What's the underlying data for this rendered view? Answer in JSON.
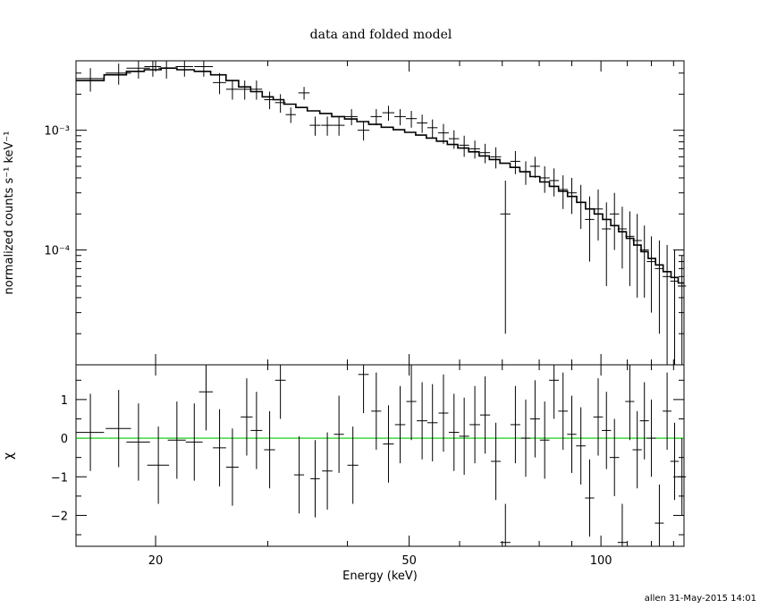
{
  "title": "data and folded model",
  "xlabel": "Energy (keV)",
  "ylabel_top": "normalized counts s⁻¹ keV⁻¹",
  "ylabel_bottom": "χ",
  "footer": "allen 31-May-2015 14:01",
  "colors": {
    "axes": "#000000",
    "data": "#000000",
    "zero_line": "#00c800"
  },
  "chart_data": [
    {
      "type": "scatter",
      "panel": "spectrum",
      "xscale": "log",
      "yscale": "log",
      "xlim": [
        15,
        135
      ],
      "ylim": [
        1.1e-05,
        0.0038
      ],
      "x_ticks": [
        "20",
        "50",
        "100"
      ],
      "y_ticks": [
        "10⁻³",
        "10⁻⁴"
      ],
      "data_points": [
        [
          15.8,
          0.0027,
          0.8,
          0.0006
        ],
        [
          17.5,
          0.003,
          0.8,
          0.0006
        ],
        [
          18.8,
          0.0033,
          0.8,
          0.0006
        ],
        [
          19.8,
          0.0034,
          0.6,
          0.0006
        ],
        [
          20.8,
          0.0033,
          0.6,
          0.0006
        ],
        [
          22.2,
          0.0034,
          0.7,
          0.0006
        ],
        [
          23.8,
          0.0034,
          0.8,
          0.0006
        ],
        [
          25.2,
          0.0025,
          0.6,
          0.0005
        ],
        [
          26.4,
          0.0022,
          0.6,
          0.0004
        ],
        [
          27.6,
          0.0022,
          0.6,
          0.0004
        ],
        [
          28.8,
          0.0022,
          0.6,
          0.0004
        ],
        [
          30.2,
          0.0018,
          0.6,
          0.0003
        ],
        [
          31.4,
          0.0017,
          0.6,
          0.0003
        ],
        [
          32.6,
          0.00135,
          0.6,
          0.0002
        ],
        [
          34.2,
          0.00205,
          0.7,
          0.00025
        ],
        [
          35.6,
          0.0011,
          0.7,
          0.0002
        ],
        [
          37.2,
          0.0011,
          0.8,
          0.0002
        ],
        [
          38.8,
          0.0011,
          0.8,
          0.0002
        ],
        [
          40.6,
          0.0013,
          0.9,
          0.0002
        ],
        [
          42.4,
          0.001,
          0.9,
          0.00018
        ],
        [
          44.4,
          0.0013,
          0.9,
          0.0002
        ],
        [
          46.4,
          0.0014,
          1.0,
          0.0002
        ],
        [
          48.4,
          0.0013,
          1.0,
          0.0002
        ],
        [
          50.4,
          0.00125,
          1.0,
          0.0002
        ],
        [
          52.4,
          0.00115,
          1.0,
          0.0002
        ],
        [
          54.4,
          0.00105,
          1.0,
          0.00018
        ],
        [
          56.6,
          0.00095,
          1.1,
          0.00018
        ],
        [
          58.8,
          0.00085,
          1.1,
          0.00015
        ],
        [
          61.0,
          0.00075,
          1.1,
          0.00015
        ],
        [
          63.4,
          0.0007,
          1.2,
          0.00012
        ],
        [
          65.8,
          0.00065,
          1.2,
          0.00012
        ],
        [
          68.4,
          0.0006,
          1.3,
          0.00012
        ],
        [
          70.8,
          0.0002,
          1.3,
          0.00018
        ],
        [
          73.4,
          0.00055,
          1.3,
          0.00012
        ],
        [
          76.2,
          0.00045,
          1.4,
          0.0001
        ],
        [
          78.8,
          0.0005,
          1.4,
          0.0001
        ],
        [
          81.6,
          0.0004,
          1.5,
          0.0001
        ],
        [
          84.4,
          0.00038,
          1.5,
          0.0001
        ],
        [
          87.2,
          0.00032,
          1.5,
          0.0001
        ],
        [
          90.0,
          0.0003,
          1.6,
          0.0001
        ],
        [
          93.0,
          0.00025,
          1.6,
          0.0001
        ],
        [
          96.0,
          0.00018,
          1.6,
          0.0001
        ],
        [
          99.0,
          0.00022,
          1.7,
          0.0001
        ],
        [
          102.0,
          0.00015,
          1.7,
          0.0001
        ],
        [
          105.0,
          0.0002,
          1.8,
          0.0001
        ],
        [
          108.0,
          0.00015,
          1.8,
          8e-05
        ],
        [
          111.0,
          0.00013,
          1.8,
          8e-05
        ],
        [
          114.0,
          0.00012,
          1.9,
          8e-05
        ],
        [
          117.0,
          0.0001,
          1.9,
          6e-05
        ],
        [
          120.0,
          8e-05,
          2.0,
          5e-05
        ],
        [
          123.5,
          7e-05,
          2.0,
          5e-05
        ],
        [
          127.0,
          6e-05,
          2.0,
          5e-05
        ],
        [
          130.5,
          5.5e-05,
          2.0,
          4.5e-05
        ],
        [
          134.0,
          5e-05,
          2.0,
          4e-05
        ]
      ],
      "model_steps": [
        [
          15.0,
          0.0026
        ],
        [
          16.6,
          0.0029
        ],
        [
          18.0,
          0.0031
        ],
        [
          19.2,
          0.0032
        ],
        [
          20.4,
          0.0033
        ],
        [
          21.6,
          0.0032
        ],
        [
          23.0,
          0.0031
        ],
        [
          24.4,
          0.0029
        ],
        [
          25.8,
          0.0026
        ],
        [
          27.0,
          0.0023
        ],
        [
          28.2,
          0.0021
        ],
        [
          29.4,
          0.0019
        ],
        [
          30.6,
          0.0018
        ],
        [
          31.8,
          0.00165
        ],
        [
          33.2,
          0.00155
        ],
        [
          34.6,
          0.00145
        ],
        [
          36.2,
          0.00138
        ],
        [
          37.8,
          0.0013
        ],
        [
          39.6,
          0.00124
        ],
        [
          41.4,
          0.00118
        ],
        [
          43.2,
          0.00112
        ],
        [
          45.2,
          0.00106
        ],
        [
          47.2,
          0.00101
        ],
        [
          49.2,
          0.00096
        ],
        [
          51.2,
          0.00091
        ],
        [
          53.2,
          0.00086
        ],
        [
          55.2,
          0.00081
        ],
        [
          57.4,
          0.00076
        ],
        [
          59.6,
          0.00071
        ],
        [
          62.0,
          0.00066
        ],
        [
          64.4,
          0.00061
        ],
        [
          66.8,
          0.00057
        ],
        [
          69.4,
          0.00053
        ],
        [
          72.0,
          0.00049
        ],
        [
          74.6,
          0.00045
        ],
        [
          77.4,
          0.00041
        ],
        [
          80.2,
          0.00037
        ],
        [
          83.0,
          0.00034
        ],
        [
          85.8,
          0.00031
        ],
        [
          88.6,
          0.00028
        ],
        [
          91.6,
          0.00025
        ],
        [
          94.6,
          0.00022
        ],
        [
          97.6,
          0.0002
        ],
        [
          100.6,
          0.00018
        ],
        [
          103.6,
          0.00016
        ],
        [
          106.6,
          0.000142
        ],
        [
          109.6,
          0.000125
        ],
        [
          112.6,
          0.00011
        ],
        [
          115.6,
          9.7e-05
        ],
        [
          118.6,
          8.5e-05
        ],
        [
          121.8,
          7.5e-05
        ],
        [
          125.2,
          6.6e-05
        ],
        [
          128.8,
          5.9e-05
        ],
        [
          132.2,
          5.3e-05
        ],
        [
          135.0,
          5.3e-05
        ]
      ]
    },
    {
      "type": "scatter",
      "panel": "residuals",
      "xscale": "log",
      "xlim": [
        15,
        135
      ],
      "ylim": [
        -2.8,
        1.9
      ],
      "x_ticks": [
        "20",
        "50",
        "100"
      ],
      "y_ticks": [
        "1",
        "0",
        "−1",
        "−2"
      ],
      "zero_line": 0,
      "data_points": [
        [
          15.8,
          0.15,
          0.8,
          1.0
        ],
        [
          17.5,
          0.25,
          0.8,
          1.0
        ],
        [
          18.8,
          -0.1,
          0.8,
          1.0
        ],
        [
          20.2,
          -0.7,
          0.8,
          1.0
        ],
        [
          21.6,
          -0.05,
          0.7,
          1.0
        ],
        [
          23.0,
          -0.1,
          0.7,
          1.0
        ],
        [
          24.0,
          1.2,
          0.6,
          1.0
        ],
        [
          25.2,
          -0.25,
          0.6,
          1.0
        ],
        [
          26.4,
          -0.75,
          0.6,
          1.0
        ],
        [
          27.8,
          0.55,
          0.6,
          1.0
        ],
        [
          28.8,
          0.2,
          0.6,
          1.0
        ],
        [
          30.2,
          -0.3,
          0.6,
          1.0
        ],
        [
          31.4,
          1.5,
          0.6,
          1.0
        ],
        [
          33.6,
          -0.95,
          0.6,
          1.0
        ],
        [
          35.6,
          -1.05,
          0.6,
          1.0
        ],
        [
          37.2,
          -0.85,
          0.7,
          1.0
        ],
        [
          38.8,
          0.1,
          0.7,
          1.0
        ],
        [
          40.8,
          -0.7,
          0.8,
          1.0
        ],
        [
          42.4,
          1.65,
          0.8,
          1.0
        ],
        [
          44.4,
          0.7,
          0.8,
          1.0
        ],
        [
          46.4,
          -0.15,
          0.9,
          1.0
        ],
        [
          48.4,
          0.35,
          0.9,
          1.0
        ],
        [
          50.4,
          0.95,
          0.9,
          1.0
        ],
        [
          52.4,
          0.45,
          1.0,
          1.0
        ],
        [
          54.4,
          0.4,
          1.0,
          1.0
        ],
        [
          56.6,
          0.65,
          1.0,
          1.0
        ],
        [
          58.8,
          0.15,
          1.1,
          1.0
        ],
        [
          61.0,
          0.05,
          1.1,
          1.0
        ],
        [
          63.4,
          0.35,
          1.2,
          1.0
        ],
        [
          65.8,
          0.6,
          1.2,
          1.0
        ],
        [
          68.4,
          -0.6,
          1.2,
          1.0
        ],
        [
          70.8,
          -2.7,
          1.3,
          1.0
        ],
        [
          73.4,
          0.35,
          1.3,
          1.0
        ],
        [
          76.2,
          0.0,
          1.3,
          1.0
        ],
        [
          78.8,
          0.5,
          1.4,
          1.0
        ],
        [
          81.6,
          -0.05,
          1.4,
          1.0
        ],
        [
          84.4,
          1.5,
          1.5,
          1.0
        ],
        [
          87.2,
          0.7,
          1.5,
          1.0
        ],
        [
          90.0,
          0.1,
          1.5,
          1.0
        ],
        [
          93.0,
          -0.2,
          1.6,
          1.0
        ],
        [
          96.0,
          -1.55,
          1.6,
          1.0
        ],
        [
          99.0,
          0.55,
          1.7,
          1.0
        ],
        [
          102.0,
          0.2,
          1.7,
          1.0
        ],
        [
          105.0,
          -0.5,
          1.8,
          1.0
        ],
        [
          108.0,
          -2.7,
          1.8,
          1.0
        ],
        [
          111.0,
          0.95,
          1.8,
          1.0
        ],
        [
          114.0,
          -0.3,
          1.9,
          1.0
        ],
        [
          117.0,
          0.45,
          1.9,
          1.0
        ],
        [
          120.0,
          0.0,
          2.0,
          1.0
        ],
        [
          123.5,
          -2.2,
          2.0,
          1.0
        ],
        [
          127.0,
          0.7,
          2.0,
          1.0
        ],
        [
          130.5,
          -0.6,
          2.0,
          1.0
        ],
        [
          134.0,
          -1.0,
          2.0,
          1.0
        ]
      ]
    }
  ]
}
